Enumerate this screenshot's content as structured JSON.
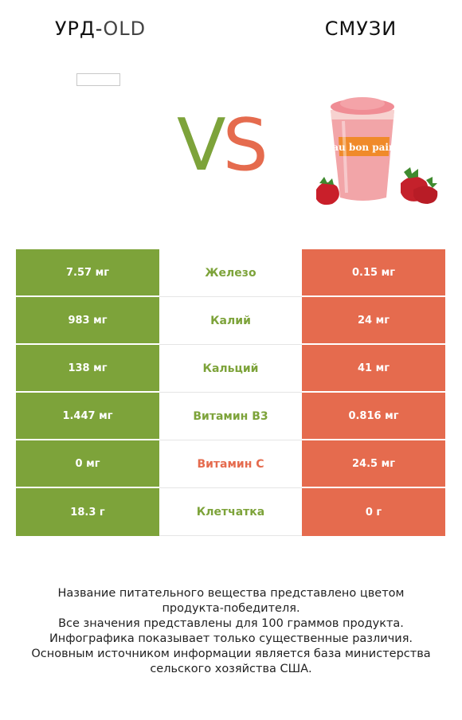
{
  "left_product": {
    "title_main": "УРД-",
    "title_rest": "OLD"
  },
  "right_product": {
    "title": "СМУЗИ",
    "cup_brand": "au bon pain"
  },
  "vs": {
    "v": "V",
    "s": "S"
  },
  "colors": {
    "winner_left": "#7da33a",
    "winner_right": "#e56b4e"
  },
  "rows": [
    {
      "left": "7.57 мг",
      "nutrient": "Железо",
      "right": "0.15 мг",
      "winner": "left"
    },
    {
      "left": "983 мг",
      "nutrient": "Калий",
      "right": "24 мг",
      "winner": "left"
    },
    {
      "left": "138 мг",
      "nutrient": "Кальций",
      "right": "41 мг",
      "winner": "left"
    },
    {
      "left": "1.447 мг",
      "nutrient": "Витамин B3",
      "right": "0.816 мг",
      "winner": "left"
    },
    {
      "left": "0 мг",
      "nutrient": "Витамин C",
      "right": "24.5 мг",
      "winner": "right"
    },
    {
      "left": "18.3 г",
      "nutrient": "Клетчатка",
      "right": "0 г",
      "winner": "left"
    }
  ],
  "footer": [
    "Название питательного вещества представлено цветом",
    "продукта-победителя.",
    "Все значения представлены для 100 граммов продукта.",
    "Инфографика показывает только существенные различия.",
    "Основным источником информации является база министерства",
    "сельского хозяйства США."
  ]
}
